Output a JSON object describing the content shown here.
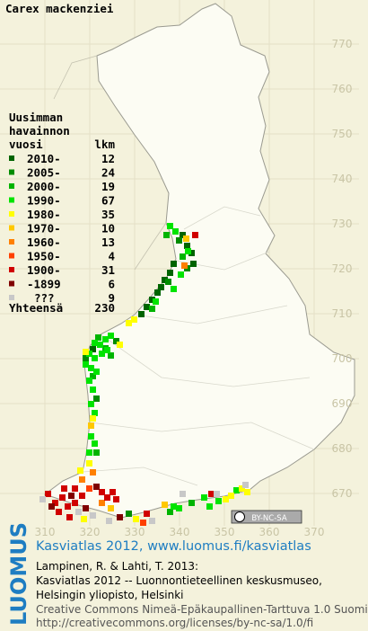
{
  "title": "Carex mackenziei",
  "legend": {
    "heading": [
      "Uusimman",
      "havainnon",
      "vuosi"
    ],
    "count_heading": "lkm",
    "rows": [
      {
        "label": "2010-",
        "count": 12,
        "color": "#006400"
      },
      {
        "label": "2005-",
        "count": 24,
        "color": "#008c00"
      },
      {
        "label": "2000-",
        "count": 19,
        "color": "#00b400"
      },
      {
        "label": "1990-",
        "count": 67,
        "color": "#00e400"
      },
      {
        "label": "1980-",
        "count": 35,
        "color": "#ffff00"
      },
      {
        "label": "1970-",
        "count": 10,
        "color": "#ffc800"
      },
      {
        "label": "1960-",
        "count": 13,
        "color": "#ff8000"
      },
      {
        "label": "1950-",
        "count": 4,
        "color": "#ff4000"
      },
      {
        "label": "1900-",
        "count": 31,
        "color": "#d00000"
      },
      {
        "label": "-1899",
        "count": 6,
        "color": "#800000"
      },
      {
        "label": "???",
        "count": 9,
        "color": "#c8c8c8"
      }
    ],
    "total_label": "Yhteensä",
    "total": 230
  },
  "map": {
    "northing_labels": [
      770,
      760,
      750,
      740,
      730,
      720,
      710,
      700,
      690,
      680,
      670
    ],
    "easting_labels": [
      310,
      320,
      330,
      340,
      350,
      360,
      370
    ]
  },
  "badge": "BY-NC-SA",
  "logo": "LUOMUS",
  "footer": {
    "link": "Kasviatlas 2012, www.luomus.fi/kasviatlas",
    "citation": [
      "Lampinen, R. & Lahti, T. 2013:",
      "Kasviatlas 2012 -- Luonnontieteellinen keskusmuseo,",
      "Helsingin yliopisto, Helsinki"
    ],
    "license": [
      "Creative Commons Nimeä-Epäkaupallinen-Tarttuva 1.0 Suomi",
      "http://creativecommons.org/licenses/by-nc-sa/1.0/fi"
    ]
  }
}
